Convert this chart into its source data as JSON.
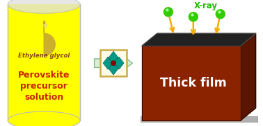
{
  "bg_color": "#ffffff",
  "cylinder_fill": "#ffff00",
  "cylinder_glass": "#e0e0e0",
  "cylinder_edge": "#bbbbbb",
  "drop_color": "#c8a830",
  "drop_highlight": "#e8d880",
  "ethylene_glycol_text": "Ethylene glycol",
  "ethylene_glycol_color": "#8B4513",
  "perovskite_text_lines": [
    "Perovskite",
    "precursor",
    "solution"
  ],
  "perovskite_color": "#cc2200",
  "arrow_fill": "#d8f0d8",
  "arrow_edge": "#88bb88",
  "box_front_color": "#8B2200",
  "box_top_color": "#222222",
  "box_top_edge": "#444444",
  "box_side_color": "#5a1500",
  "box_base_color": "#b0b0b0",
  "box_base_edge": "#888888",
  "thick_film_text": "Thick film",
  "thick_film_color": "#ffffff",
  "xray_text": "X-ray",
  "xray_color": "#22bb00",
  "xray_ball_color": "#33cc00",
  "xray_ball_highlight": "#aaffaa",
  "arrow_xray_color": "#ffaa00",
  "crystal_teal": "#009988",
  "crystal_frame_color": "#ccaa44",
  "crystal_bg": "#fffce8",
  "center_dot_color": "#880000"
}
